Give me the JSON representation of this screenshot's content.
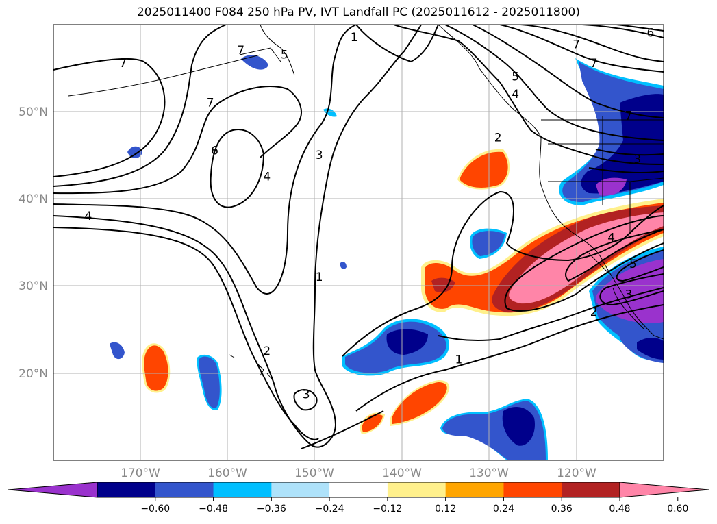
{
  "title": "2025011400 F084 250 hPa PV, IVT Landfall PC (2025011612 - 2025011800)",
  "map": {
    "lon_labels": [
      "170°W",
      "160°W",
      "150°W",
      "140°W",
      "130°W",
      "120°W"
    ],
    "lat_labels": [
      "50°N",
      "40°N",
      "30°N",
      "20°N"
    ],
    "lon_range": [
      -180,
      -110
    ],
    "lat_range": [
      10,
      60
    ],
    "gridlines": true,
    "pv_contours": [
      {
        "level": "7",
        "x": -172,
        "y": 55.5
      },
      {
        "level": "7",
        "x": -158.5,
        "y": 57
      },
      {
        "level": "7",
        "x": -162,
        "y": 51
      },
      {
        "level": "7",
        "x": -118,
        "y": 55.5
      },
      {
        "level": "7",
        "x": -114,
        "y": 49.5
      },
      {
        "level": "7",
        "x": -120,
        "y": 57.7
      },
      {
        "level": "6",
        "x": -161.5,
        "y": 45.5
      },
      {
        "level": "6",
        "x": -111.5,
        "y": 59
      },
      {
        "level": "5",
        "x": -153.5,
        "y": 56.5
      },
      {
        "level": "5",
        "x": -127,
        "y": 54
      },
      {
        "level": "5",
        "x": -113.5,
        "y": 32.5
      },
      {
        "level": "4",
        "x": -176,
        "y": 38
      },
      {
        "level": "4",
        "x": -155.5,
        "y": 42.5
      },
      {
        "level": "4",
        "x": -127,
        "y": 52
      },
      {
        "level": "4",
        "x": -116,
        "y": 35.5
      },
      {
        "level": "3",
        "x": -149.5,
        "y": 45
      },
      {
        "level": "3",
        "x": -151,
        "y": 17.5
      },
      {
        "level": "3",
        "x": -114,
        "y": 29
      },
      {
        "level": "3",
        "x": -113,
        "y": 44.5
      },
      {
        "level": "2",
        "x": -155.5,
        "y": 22.5
      },
      {
        "level": "2",
        "x": -129,
        "y": 47
      },
      {
        "level": "2",
        "x": -118,
        "y": 27
      },
      {
        "level": "1",
        "x": -145.5,
        "y": 58.5
      },
      {
        "level": "1",
        "x": -149.5,
        "y": 31
      },
      {
        "level": "1",
        "x": -133.5,
        "y": 21.5
      }
    ],
    "colors": {
      "ocean": "#ffffff",
      "coast": "#000000",
      "grid": "#b0b0b0"
    }
  },
  "colorbar": {
    "ticks": [
      "−0.60",
      "−0.48",
      "−0.36",
      "−0.24",
      "−0.12",
      "0.12",
      "0.24",
      "0.36",
      "0.48",
      "0.60"
    ],
    "colors": [
      "#9a32cd",
      "#00008b",
      "#3355cc",
      "#00bfff",
      "#aee2fa",
      "#ffffff",
      "#fff08c",
      "#ffa500",
      "#ff4500",
      "#b22222",
      "#ff85a8"
    ],
    "extend": "both"
  }
}
